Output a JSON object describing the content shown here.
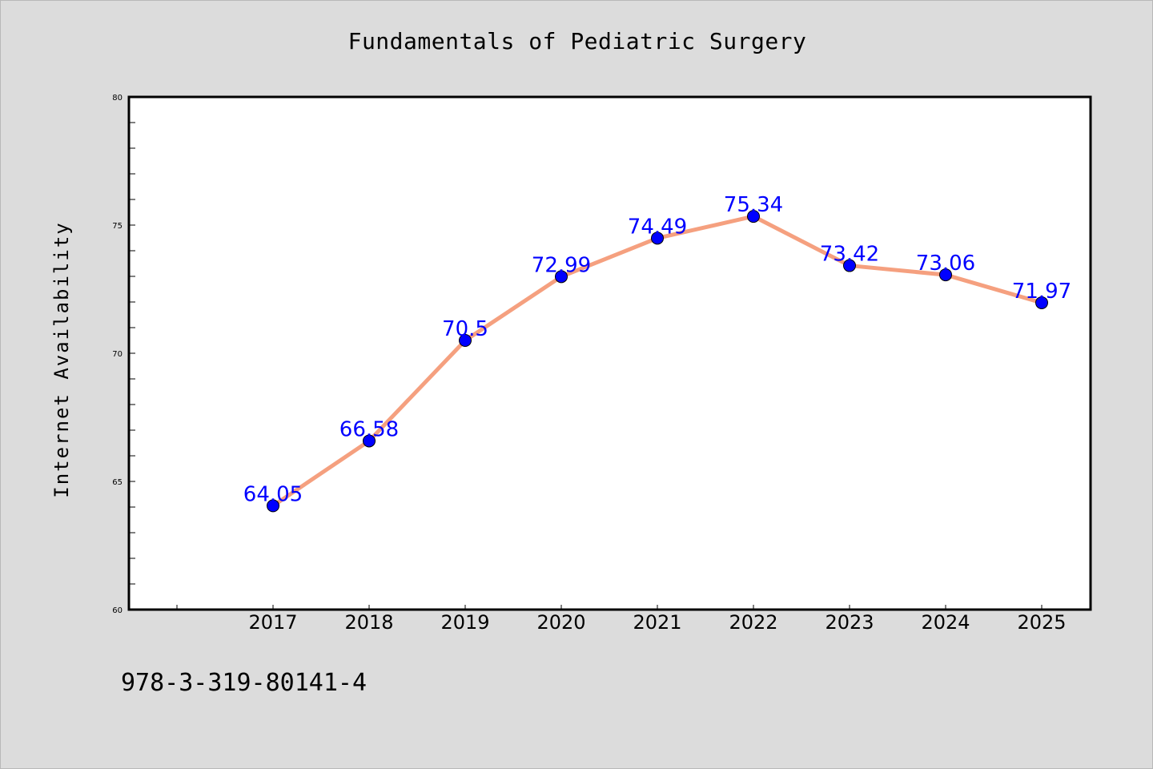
{
  "chart_data": {
    "type": "line",
    "title": "Fundamentals of Pediatric Surgery",
    "ylabel": "Internet Availability",
    "xlabel": "",
    "categories": [
      "2017",
      "2018",
      "2019",
      "2020",
      "2021",
      "2022",
      "2023",
      "2024",
      "2025"
    ],
    "series": [
      {
        "values": [
          64.05,
          66.58,
          70.5,
          72.99,
          74.49,
          75.34,
          73.42,
          73.06,
          71.97
        ],
        "labels": [
          "64.05",
          "66.58",
          "70.5",
          "72.99",
          "74.49",
          "75.34",
          "73.42",
          "73.06",
          "71.97"
        ]
      }
    ],
    "ylim": [
      60,
      80
    ],
    "yticks": [
      "60",
      "65",
      "70",
      "75",
      "80"
    ],
    "grid": false,
    "colors": {
      "line": "#f5a07f",
      "marker": "#0000ff",
      "data_label": "#0000ff",
      "background": "#dcdcdc",
      "plot_background": "#ffffff"
    }
  },
  "footnote": "978-3-319-80141-4"
}
